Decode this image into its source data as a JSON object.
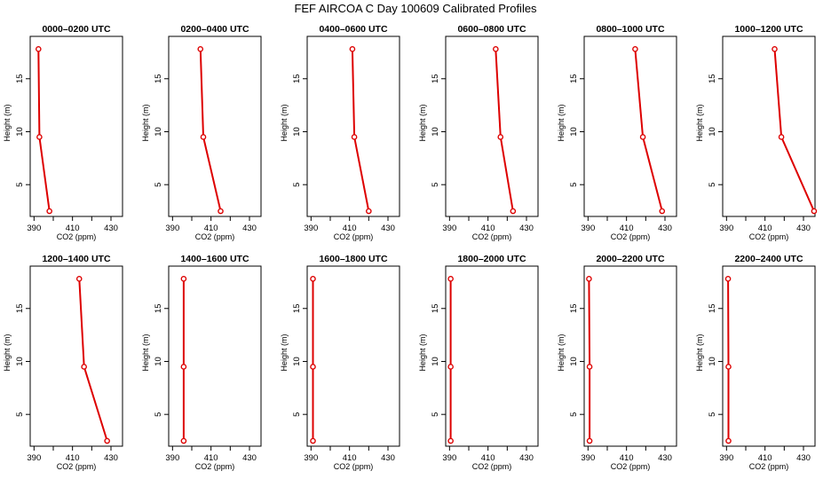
{
  "figure": {
    "title": "FEF AIRCOA C  Day 100609  Calibrated Profiles"
  },
  "style": {
    "line_color": "#dd0000",
    "point_color": "#dd0000",
    "axis_color": "#000000"
  },
  "chart_data": [
    {
      "type": "line",
      "title": "0000–0200 UTC",
      "xlabel": "CO2 (ppm)",
      "ylabel": "Height (m)",
      "xlim": [
        388,
        436
      ],
      "ylim": [
        2,
        19
      ],
      "xticks": [
        390,
        410,
        430
      ],
      "yticks": [
        5,
        10,
        15
      ],
      "x_minor_ticks": [
        400,
        420
      ],
      "heights": [
        2.5,
        9.5,
        17.8
      ],
      "values": [
        398,
        392.8,
        392.3
      ]
    },
    {
      "type": "line",
      "title": "0200–0400 UTC",
      "xlabel": "CO2 (ppm)",
      "ylabel": "Height (m)",
      "xlim": [
        388,
        436
      ],
      "ylim": [
        2,
        19
      ],
      "xticks": [
        390,
        410,
        430
      ],
      "yticks": [
        5,
        10,
        15
      ],
      "x_minor_ticks": [
        400,
        420
      ],
      "heights": [
        2.5,
        9.5,
        17.8
      ],
      "values": [
        415,
        406,
        404.5
      ]
    },
    {
      "type": "line",
      "title": "0400–0600 UTC",
      "xlabel": "CO2 (ppm)",
      "ylabel": "Height (m)",
      "xlim": [
        388,
        436
      ],
      "ylim": [
        2,
        19
      ],
      "xticks": [
        390,
        410,
        430
      ],
      "yticks": [
        5,
        10,
        15
      ],
      "x_minor_ticks": [
        400,
        420
      ],
      "heights": [
        2.5,
        9.5,
        17.8
      ],
      "values": [
        420,
        412.5,
        411.5
      ]
    },
    {
      "type": "line",
      "title": "0600–0800 UTC",
      "xlabel": "CO2 (ppm)",
      "ylabel": "Height (m)",
      "xlim": [
        388,
        436
      ],
      "ylim": [
        2,
        19
      ],
      "xticks": [
        390,
        410,
        430
      ],
      "yticks": [
        5,
        10,
        15
      ],
      "x_minor_ticks": [
        400,
        420
      ],
      "heights": [
        2.5,
        9.5,
        17.8
      ],
      "values": [
        423,
        416.5,
        414
      ]
    },
    {
      "type": "line",
      "title": "0800–1000 UTC",
      "xlabel": "CO2 (ppm)",
      "ylabel": "Height (m)",
      "xlim": [
        388,
        436
      ],
      "ylim": [
        2,
        19
      ],
      "xticks": [
        390,
        410,
        430
      ],
      "yticks": [
        5,
        10,
        15
      ],
      "x_minor_ticks": [
        400,
        420
      ],
      "heights": [
        2.5,
        9.5,
        17.8
      ],
      "values": [
        428.5,
        418.5,
        414.5
      ]
    },
    {
      "type": "line",
      "title": "1000–1200 UTC",
      "xlabel": "CO2 (ppm)",
      "ylabel": "Height (m)",
      "xlim": [
        388,
        436
      ],
      "ylim": [
        2,
        19
      ],
      "xticks": [
        390,
        410,
        430
      ],
      "yticks": [
        5,
        10,
        15
      ],
      "x_minor_ticks": [
        400,
        420
      ],
      "heights": [
        2.5,
        9.5,
        17.8
      ],
      "values": [
        435.5,
        418.5,
        415
      ]
    },
    {
      "type": "line",
      "title": "1200–1400 UTC",
      "xlabel": "CO2 (ppm)",
      "ylabel": "Height (m)",
      "xlim": [
        388,
        436
      ],
      "ylim": [
        2,
        19
      ],
      "xticks": [
        390,
        410,
        430
      ],
      "yticks": [
        5,
        10,
        15
      ],
      "x_minor_ticks": [
        400,
        420
      ],
      "heights": [
        2.5,
        9.5,
        17.8
      ],
      "values": [
        428,
        416,
        413.5
      ]
    },
    {
      "type": "line",
      "title": "1400–1600 UTC",
      "xlabel": "CO2 (ppm)",
      "ylabel": "Height (m)",
      "xlim": [
        388,
        436
      ],
      "ylim": [
        2,
        19
      ],
      "xticks": [
        390,
        410,
        430
      ],
      "yticks": [
        5,
        10,
        15
      ],
      "x_minor_ticks": [
        400,
        420
      ],
      "heights": [
        2.5,
        9.5,
        17.8
      ],
      "values": [
        395.8,
        395.8,
        395.8
      ]
    },
    {
      "type": "line",
      "title": "1600–1800 UTC",
      "xlabel": "CO2 (ppm)",
      "ylabel": "Height (m)",
      "xlim": [
        388,
        436
      ],
      "ylim": [
        2,
        19
      ],
      "xticks": [
        390,
        410,
        430
      ],
      "yticks": [
        5,
        10,
        15
      ],
      "x_minor_ticks": [
        400,
        420
      ],
      "heights": [
        2.5,
        9.5,
        17.8
      ],
      "values": [
        391,
        391,
        391
      ]
    },
    {
      "type": "line",
      "title": "1800–2000 UTC",
      "xlabel": "CO2 (ppm)",
      "ylabel": "Height (m)",
      "xlim": [
        388,
        436
      ],
      "ylim": [
        2,
        19
      ],
      "xticks": [
        390,
        410,
        430
      ],
      "yticks": [
        5,
        10,
        15
      ],
      "x_minor_ticks": [
        400,
        420
      ],
      "heights": [
        2.5,
        9.5,
        17.8
      ],
      "values": [
        390.6,
        390.6,
        390.6
      ]
    },
    {
      "type": "line",
      "title": "2000–2200 UTC",
      "xlabel": "CO2 (ppm)",
      "ylabel": "Height (m)",
      "xlim": [
        388,
        436
      ],
      "ylim": [
        2,
        19
      ],
      "xticks": [
        390,
        410,
        430
      ],
      "yticks": [
        5,
        10,
        15
      ],
      "x_minor_ticks": [
        400,
        420
      ],
      "heights": [
        2.5,
        9.5,
        17.8
      ],
      "values": [
        390.8,
        390.8,
        390.5
      ]
    },
    {
      "type": "line",
      "title": "2200–2400 UTC",
      "xlabel": "CO2 (ppm)",
      "ylabel": "Height (m)",
      "xlim": [
        388,
        436
      ],
      "ylim": [
        2,
        19
      ],
      "xticks": [
        390,
        410,
        430
      ],
      "yticks": [
        5,
        10,
        15
      ],
      "x_minor_ticks": [
        400,
        420
      ],
      "heights": [
        2.5,
        9.5,
        17.8
      ],
      "values": [
        391,
        391,
        390.8
      ]
    }
  ]
}
